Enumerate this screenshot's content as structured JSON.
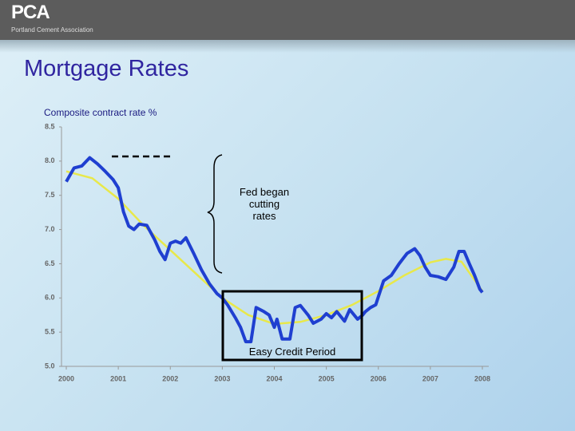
{
  "header": {
    "logo": "PCA",
    "organization": "Portland Cement Association"
  },
  "chart_data": {
    "type": "line",
    "title": "Mortgage Rates",
    "subtitle": "Composite contract rate %",
    "xlim": [
      2000,
      2008
    ],
    "xticks": [
      2000,
      2001,
      2002,
      2003,
      2004,
      2005,
      2006,
      2007,
      2008
    ],
    "ylim": [
      5.0,
      8.5
    ],
    "yticks": [
      {
        "value": 5.0,
        "label": "5.0"
      },
      {
        "value": 5.5,
        "label": "5.5"
      },
      {
        "value": 6.0,
        "label": "6.0"
      },
      {
        "value": 6.5,
        "label": "6.5"
      },
      {
        "value": 7.0,
        "label": "7.0"
      },
      {
        "value": 7.5,
        "label": "7.5"
      },
      {
        "value": 8.0,
        "label": "8.0"
      },
      {
        "value": 8.5,
        "label": "8.5"
      }
    ],
    "series": [
      {
        "color": "#1f3fd0",
        "x": [
          2000.0,
          2000.15,
          2000.3,
          2000.45,
          2000.6,
          2000.75,
          2000.9,
          2001.0,
          2001.1,
          2001.2,
          2001.3,
          2001.4,
          2001.55,
          2001.7,
          2001.8,
          2001.9,
          2002.0,
          2002.1,
          2002.2,
          2002.3,
          2002.45,
          2002.6,
          2002.75,
          2002.9,
          2003.0,
          2003.1,
          2003.25,
          2003.35,
          2003.45,
          2003.55,
          2003.65,
          2003.8,
          2003.9,
          2004.0,
          2004.05,
          2004.15,
          2004.3,
          2004.4,
          2004.5,
          2004.65,
          2004.75,
          2004.9,
          2005.0,
          2005.1,
          2005.2,
          2005.35,
          2005.45,
          2005.6,
          2005.7,
          2005.75,
          2005.85,
          2005.95,
          2006.1,
          2006.25,
          2006.4,
          2006.55,
          2006.7,
          2006.8,
          2006.9,
          2007.0,
          2007.15,
          2007.3,
          2007.45,
          2007.55,
          2007.65,
          2007.75,
          2007.85,
          2007.95,
          2008.0
        ],
        "values": [
          7.7,
          7.9,
          7.93,
          8.05,
          7.96,
          7.85,
          7.73,
          7.61,
          7.26,
          7.05,
          7.0,
          7.08,
          7.06,
          6.85,
          6.68,
          6.56,
          6.8,
          6.83,
          6.8,
          6.88,
          6.65,
          6.41,
          6.21,
          6.06,
          6.0,
          5.9,
          5.71,
          5.57,
          5.36,
          5.36,
          5.86,
          5.8,
          5.75,
          5.57,
          5.69,
          5.4,
          5.4,
          5.86,
          5.89,
          5.75,
          5.63,
          5.69,
          5.77,
          5.71,
          5.8,
          5.66,
          5.83,
          5.69,
          5.75,
          5.8,
          5.86,
          5.9,
          6.25,
          6.33,
          6.5,
          6.65,
          6.72,
          6.62,
          6.45,
          6.33,
          6.31,
          6.27,
          6.45,
          6.68,
          6.68,
          6.5,
          6.33,
          6.13,
          6.08
        ]
      },
      {
        "color": "#e8e84a",
        "x": [
          2000.0,
          2000.5,
          2001.0,
          2001.5,
          2002.0,
          2002.5,
          2003.0,
          2003.5,
          2004.0,
          2004.5,
          2005.0,
          2005.5,
          2006.0,
          2006.5,
          2007.0,
          2007.3,
          2007.6,
          2008.0
        ],
        "values": [
          7.85,
          7.75,
          7.45,
          7.05,
          6.7,
          6.35,
          6.0,
          5.75,
          5.62,
          5.65,
          5.75,
          5.9,
          6.1,
          6.33,
          6.52,
          6.57,
          6.53,
          6.1
        ]
      }
    ],
    "annotations": [
      "Fed began cutting rates",
      "Easy Credit Period"
    ]
  }
}
